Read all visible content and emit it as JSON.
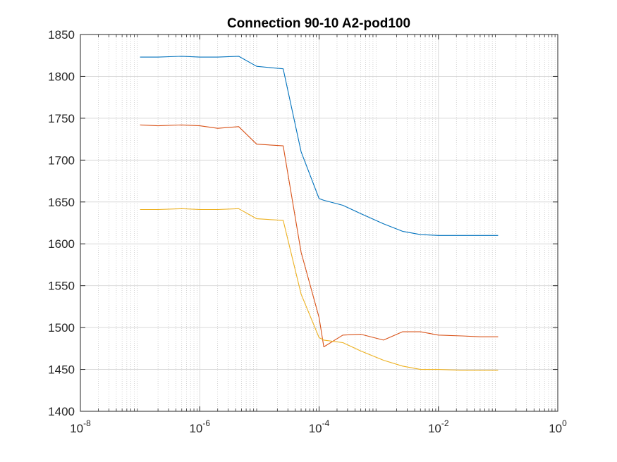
{
  "chart_data": {
    "type": "line",
    "title": "Connection 90-10 A2-pod100",
    "xlabel": "",
    "ylabel": "",
    "x_scale": "log",
    "xlim": [
      1e-08,
      1
    ],
    "ylim": [
      1400,
      1850
    ],
    "x_ticks": [
      1e-08,
      1e-06,
      0.0001,
      0.01,
      1
    ],
    "x_tick_labels": [
      {
        "base": "10",
        "exp": "-8"
      },
      {
        "base": "10",
        "exp": "-6"
      },
      {
        "base": "10",
        "exp": "-4"
      },
      {
        "base": "10",
        "exp": "-2"
      },
      {
        "base": "10",
        "exp": "0"
      }
    ],
    "y_ticks": [
      1400,
      1450,
      1500,
      1550,
      1600,
      1650,
      1700,
      1750,
      1800,
      1850
    ],
    "grid": true,
    "x": [
      1e-07,
      2e-07,
      5e-07,
      1e-06,
      2e-06,
      4.5e-06,
      9e-06,
      2.5e-05,
      5e-05,
      0.0001,
      0.00012,
      0.00025,
      0.0005,
      0.0012,
      0.0025,
      0.005,
      0.01,
      0.025,
      0.05,
      0.1
    ],
    "series": [
      {
        "color": "#0072BD",
        "values": [
          1823,
          1823,
          1824,
          1823,
          1823,
          1824,
          1812,
          1809,
          1710,
          1654,
          1652,
          1646,
          1636,
          1624,
          1615,
          1611,
          1610,
          1610,
          1610,
          1610
        ]
      },
      {
        "color": "#D95319",
        "values": [
          1742,
          1741,
          1742,
          1741,
          1738,
          1740,
          1719,
          1717,
          1590,
          1512,
          1477,
          1491,
          1492,
          1485,
          1495,
          1495,
          1491,
          1490,
          1489,
          1489
        ]
      },
      {
        "color": "#EDB120",
        "values": [
          1641,
          1641,
          1642,
          1641,
          1641,
          1642,
          1630,
          1628,
          1540,
          1488,
          1485,
          1482,
          1472,
          1461,
          1454,
          1450,
          1450,
          1449,
          1449,
          1449
        ]
      }
    ]
  }
}
